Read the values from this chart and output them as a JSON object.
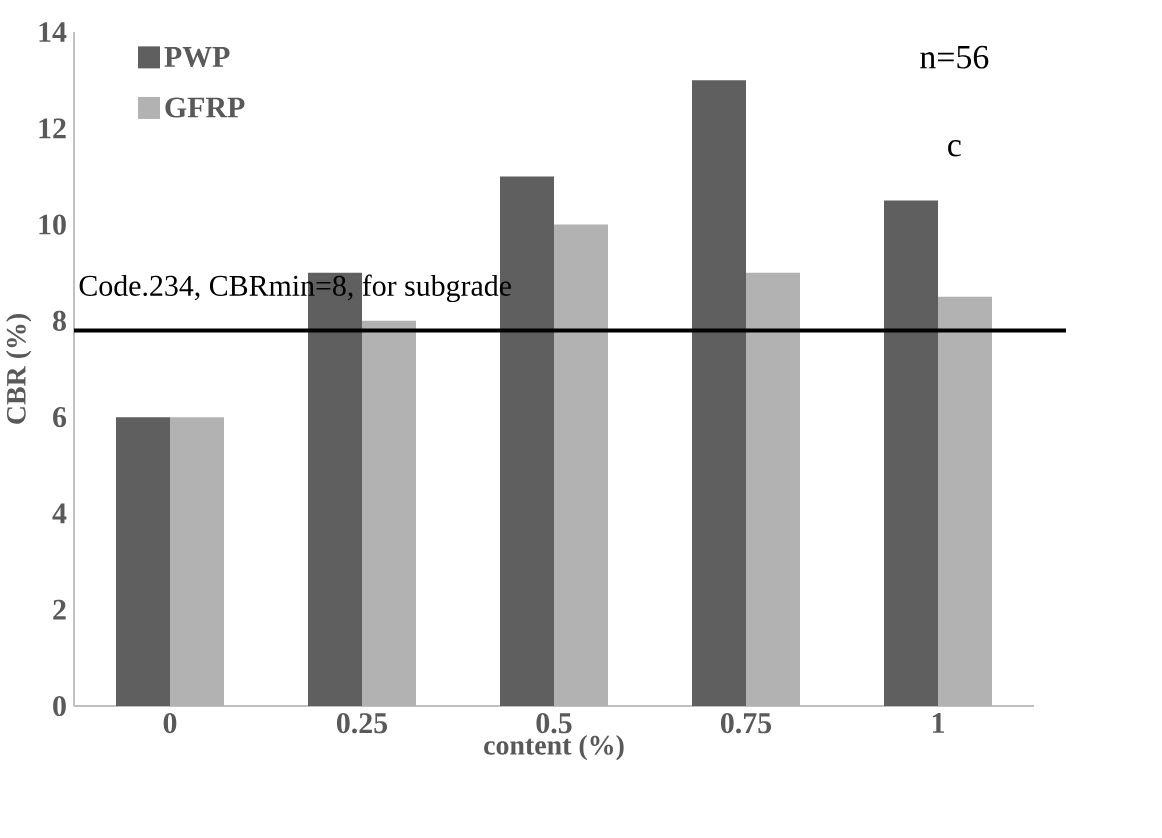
{
  "chart_data": {
    "type": "bar",
    "xlabel": "content (%)",
    "ylabel": "CBR (%)",
    "categories": [
      "0",
      "0.25",
      "0.5",
      "0.75",
      "1"
    ],
    "series": [
      {
        "name": "PWP",
        "color": "#5f5f5f",
        "values": [
          6,
          9,
          11,
          13,
          10.5
        ]
      },
      {
        "name": "GFRP",
        "color": "#b2b2b2",
        "values": [
          6,
          8,
          10,
          9,
          8.5
        ]
      }
    ],
    "ylim": [
      0,
      14
    ],
    "yticks": [
      0,
      2,
      4,
      6,
      8,
      10,
      12,
      14
    ],
    "ref_lines": [
      {
        "axis": "y",
        "value": 7.8,
        "label": "Code.234, CBRmin=8, for subgrade",
        "color": "#000000"
      }
    ],
    "annotations": [
      "n=56",
      "c"
    ],
    "legend": "top left",
    "grid": false
  }
}
